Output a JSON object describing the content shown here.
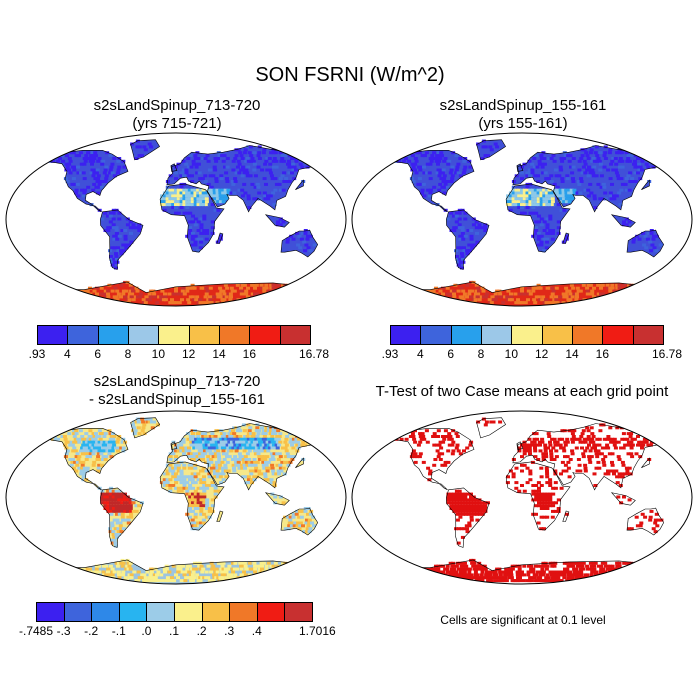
{
  "figure": {
    "title": "SON FSRNI (W/m^2)"
  },
  "panels": [
    {
      "id": "case1",
      "title_line1": "s2sLandSpinup_713-720",
      "title_line2": "(yrs 715-721)",
      "land_color": "#4050D8",
      "desert_color": "#8CC8E8",
      "antarctic_color": "#E02818"
    },
    {
      "id": "case2",
      "title_line1": "s2sLandSpinup_155-161",
      "title_line2": "(yrs 155-161)",
      "land_color": "#4050D8",
      "desert_color": "#8CC8E8",
      "antarctic_color": "#E02818"
    },
    {
      "id": "diff",
      "title_line1": "s2sLandSpinup_713-720",
      "title_line2": "- s2sLandSpinup_155-161",
      "land_color": "#F6E88A",
      "antarctic_color": "#9CC4E0",
      "hot_color": "#C02828"
    },
    {
      "id": "ttest",
      "title_line1": "T-Test of two Case means at each grid point",
      "note": "Cells are significant at 0.1 level",
      "sig_color": "#E01010"
    }
  ],
  "colorbars": [
    {
      "id": "cb1",
      "colors": [
        "#3C20F0",
        "#3E64DC",
        "#28A0EC",
        "#9CC8E8",
        "#FAF08C",
        "#F8C048",
        "#F07828",
        "#F01C14",
        "#C83030"
      ],
      "labels": [
        ".93",
        "4",
        "6",
        "8",
        "10",
        "12",
        "14",
        "16",
        "16.78"
      ]
    },
    {
      "id": "cb2",
      "colors": [
        "#3C20F0",
        "#3E64DC",
        "#28A0EC",
        "#9CC8E8",
        "#FAF08C",
        "#F8C048",
        "#F07828",
        "#F01C14",
        "#C83030"
      ],
      "labels": [
        ".93",
        "4",
        "6",
        "8",
        "10",
        "12",
        "14",
        "16",
        "16.78"
      ]
    },
    {
      "id": "cb3",
      "colors": [
        "#3C20F0",
        "#3E64DC",
        "#2E88E8",
        "#28B4F0",
        "#9CCCE8",
        "#FAF08C",
        "#F8C048",
        "#F07828",
        "#F01C14",
        "#C83030"
      ],
      "labels": [
        "-.7485",
        "-.3",
        "-.2",
        "-.1",
        ".0",
        ".1",
        ".2",
        ".3",
        ".4",
        "1.7016"
      ]
    }
  ]
}
